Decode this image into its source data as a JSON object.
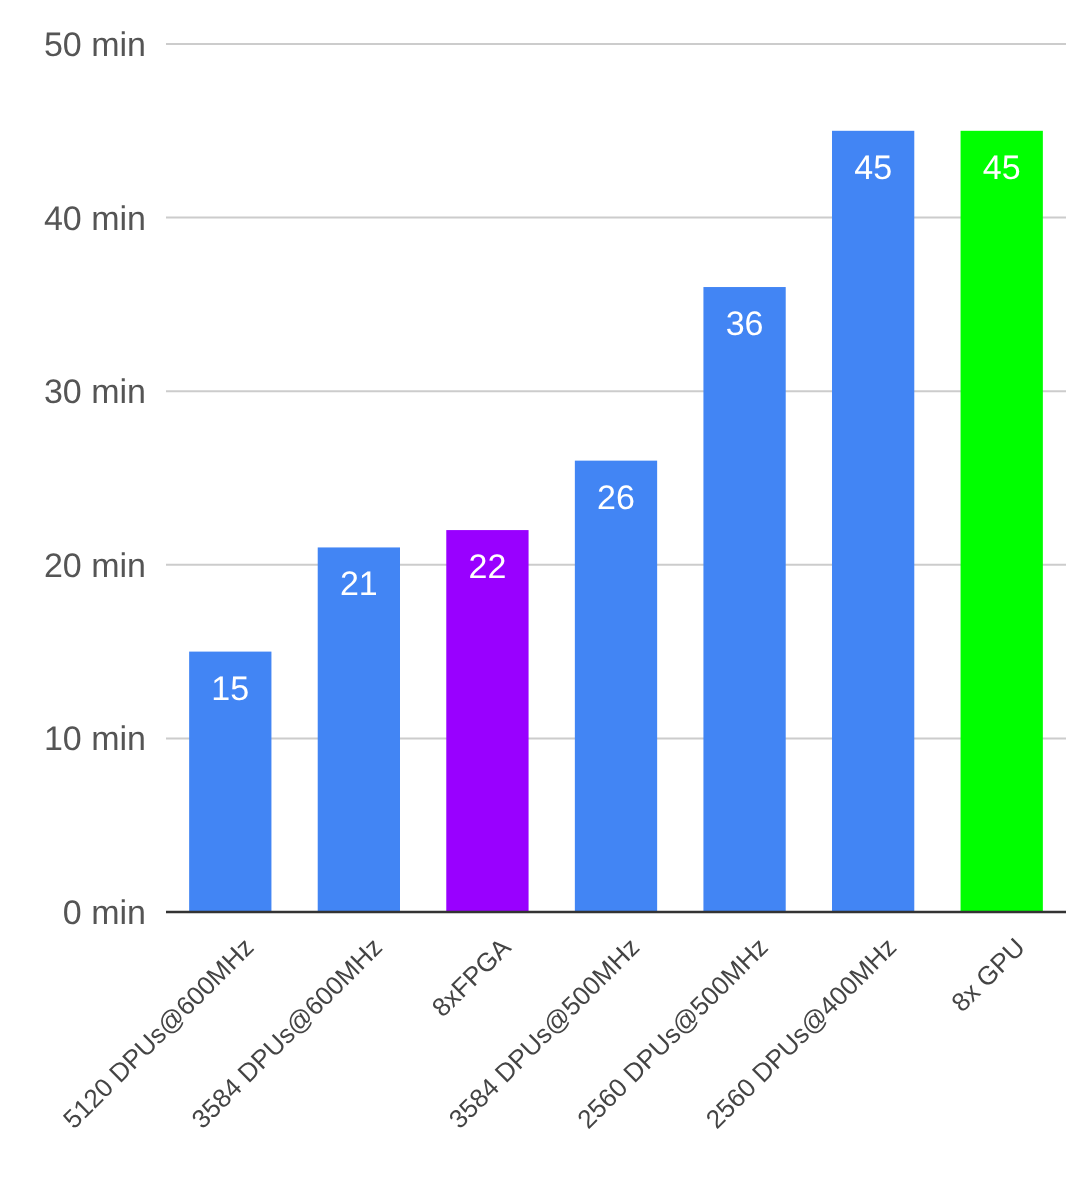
{
  "chart_data": {
    "type": "bar",
    "categories": [
      "5120 DPUs@600MHz",
      "3584 DPUs@600MHz",
      "8xFPGA",
      "3584 DPUs@500MHz",
      "2560 DPUs@500MHz",
      "2560 DPUs@400MHz",
      "8x GPU"
    ],
    "values": [
      15,
      21,
      22,
      26,
      36,
      45,
      45
    ],
    "colors": [
      "#4285f4",
      "#4285f4",
      "#9900ff",
      "#4285f4",
      "#4285f4",
      "#4285f4",
      "#00ff00"
    ],
    "ylim": [
      0,
      50
    ],
    "yticks": [
      {
        "value": 0,
        "label": "0 min"
      },
      {
        "value": 10,
        "label": "10 min"
      },
      {
        "value": 20,
        "label": "20 min"
      },
      {
        "value": 30,
        "label": "30 min"
      },
      {
        "value": 40,
        "label": "40 min"
      },
      {
        "value": 50,
        "label": "50 min"
      }
    ],
    "grid": "y",
    "data_labels": true
  }
}
